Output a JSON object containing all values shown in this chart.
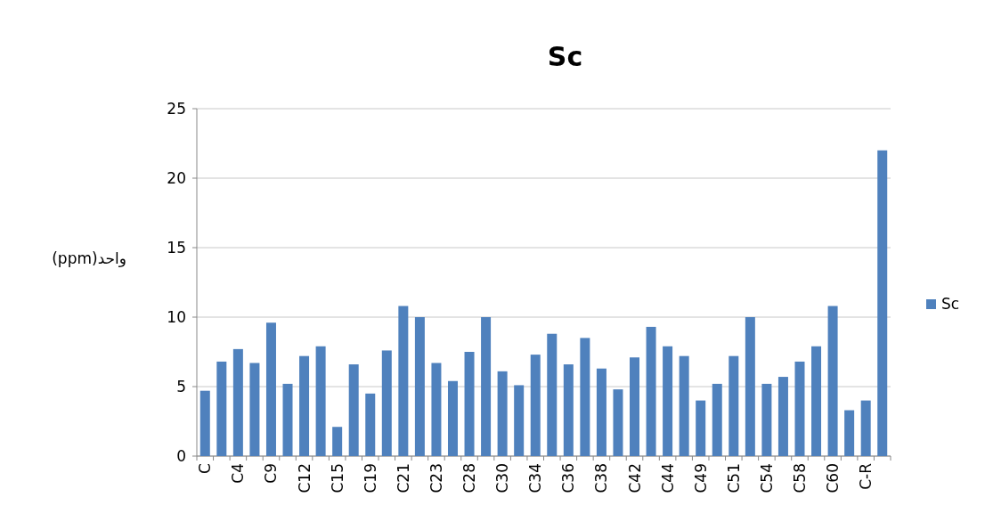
{
  "chart_data": {
    "type": "bar",
    "title": "Sc",
    "ylabel": "واحد(ppm)",
    "categories": [
      "C",
      null,
      "C4",
      null,
      "C9",
      null,
      "C12",
      null,
      "C15",
      null,
      "C19",
      null,
      "C21",
      null,
      "C23",
      null,
      "C28",
      null,
      "C30",
      null,
      "C34",
      null,
      "C36",
      null,
      "C38",
      null,
      "C42",
      null,
      "C44",
      null,
      "C49",
      null,
      "C51",
      null,
      "C54",
      null,
      "C58",
      null,
      "C60",
      null,
      "C-R",
      null
    ],
    "series": [
      {
        "name": "Sc",
        "color": "#4f81bd",
        "values": [
          4.7,
          6.8,
          7.7,
          6.7,
          9.6,
          5.2,
          7.2,
          7.9,
          2.1,
          6.6,
          4.5,
          7.6,
          10.8,
          10.0,
          6.7,
          5.4,
          7.5,
          10.0,
          6.1,
          5.1,
          7.3,
          8.8,
          6.6,
          8.5,
          6.3,
          4.8,
          7.1,
          9.3,
          7.9,
          7.2,
          4.0,
          5.2,
          7.2,
          10.0,
          5.2,
          5.7,
          6.8,
          7.9,
          10.8,
          3.3,
          4.0,
          22.0
        ]
      }
    ],
    "ylim": [
      0,
      25
    ],
    "yticks": [
      0,
      5,
      10,
      15,
      20,
      25
    ],
    "grid": "y",
    "legend": "right"
  }
}
